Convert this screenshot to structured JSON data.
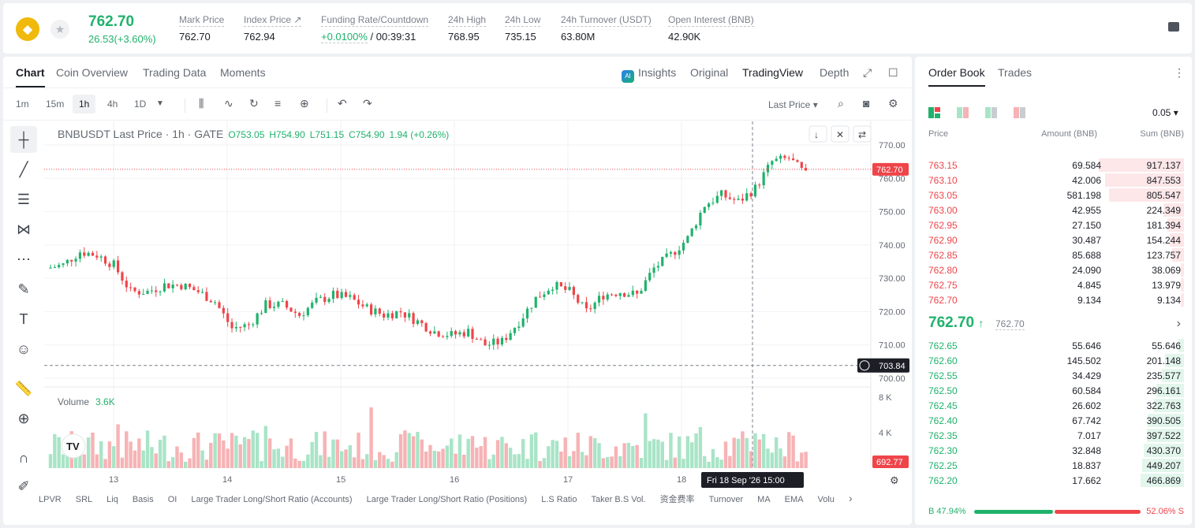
{
  "header": {
    "logo": "bnb-logo",
    "last_price": "762.70",
    "change": "26.53(+3.60%)",
    "stats": [
      {
        "k": "Mark Price",
        "v": "762.70"
      },
      {
        "k": "Index Price ↗",
        "v": "762.94"
      },
      {
        "k": "Funding Rate/Countdown",
        "v": "+0.0100%",
        "v2": "/ 00:39:31"
      },
      {
        "k": "24h High",
        "v": "768.95"
      },
      {
        "k": "24h Low",
        "v": "735.15"
      },
      {
        "k": "24h Turnover (USDT)",
        "v": "63.80M"
      },
      {
        "k": "Open Interest (BNB)",
        "v": "42.90K"
      }
    ]
  },
  "chart_tabs": [
    "Chart",
    "Coin Overview",
    "Trading Data",
    "Moments"
  ],
  "chart_views": {
    "insights": "Insights",
    "original": "Original",
    "tradingview": "TradingView",
    "depth": "Depth"
  },
  "timeframes": [
    "1m",
    "15m",
    "1h",
    "4h",
    "1D"
  ],
  "last_price_select": "Last Price",
  "legend": {
    "symbol": "BNBUSDT Last Price · 1h · GATE",
    "o": "O753.05",
    "h": "H754.90",
    "l": "L751.15",
    "c": "C754.90",
    "chg": "1.94 (+0.26%)"
  },
  "volume_label": "Volume",
  "volume_value": "3.6K",
  "price_axis": [
    "770.00",
    "760.00",
    "750.00",
    "740.00",
    "730.00",
    "720.00",
    "710.00",
    "700.00"
  ],
  "volume_axis": [
    "8 K",
    "4 K"
  ],
  "price_tag": "762.70",
  "crosshair_tag": "703.84",
  "vol_tag": "692.77",
  "date_axis": [
    "13",
    "14",
    "15",
    "16",
    "17",
    "18"
  ],
  "crosshair_time": "Fri 18 Sep '26   15:00",
  "indicators": [
    "LPVR",
    "SRL",
    "Liq",
    "Basis",
    "OI",
    "Large Trader Long/Short Ratio (Accounts)",
    "Large Trader Long/Short Ratio (Positions)",
    "L.S Ratio",
    "Taker B.S Vol.",
    "资金费率",
    "Turnover",
    "MA",
    "EMA",
    "Volu"
  ],
  "orderbook": {
    "tabs": [
      "Order Book",
      "Trades"
    ],
    "tick": "0.05",
    "headers": [
      "Price",
      "Amount (BNB)",
      "Sum (BNB)"
    ],
    "asks": [
      [
        "763.15",
        "69.584",
        "917.137"
      ],
      [
        "763.10",
        "42.006",
        "847.553"
      ],
      [
        "763.05",
        "581.198",
        "805.547"
      ],
      [
        "763.00",
        "42.955",
        "224.349"
      ],
      [
        "762.95",
        "27.150",
        "181.394"
      ],
      [
        "762.90",
        "30.487",
        "154.244"
      ],
      [
        "762.85",
        "85.688",
        "123.757"
      ],
      [
        "762.80",
        "24.090",
        "38.069"
      ],
      [
        "762.75",
        "4.845",
        "13.979"
      ],
      [
        "762.70",
        "9.134",
        "9.134"
      ]
    ],
    "mid_price": "762.70",
    "mid_arrow": "↑",
    "mark": "762.70",
    "bids": [
      [
        "762.65",
        "55.646",
        "55.646"
      ],
      [
        "762.60",
        "145.502",
        "201.148"
      ],
      [
        "762.55",
        "34.429",
        "235.577"
      ],
      [
        "762.50",
        "60.584",
        "296.161"
      ],
      [
        "762.45",
        "26.602",
        "322.763"
      ],
      [
        "762.40",
        "67.742",
        "390.505"
      ],
      [
        "762.35",
        "7.017",
        "397.522"
      ],
      [
        "762.30",
        "32.848",
        "430.370"
      ],
      [
        "762.25",
        "18.837",
        "449.207"
      ],
      [
        "762.20",
        "17.662",
        "466.869"
      ]
    ],
    "buy_ratio": "47.94%",
    "sell_ratio": "52.06%",
    "buy_letter": "B",
    "sell_letter": "S"
  },
  "colors": {
    "up": "#20b26c",
    "down": "#ef454a"
  }
}
